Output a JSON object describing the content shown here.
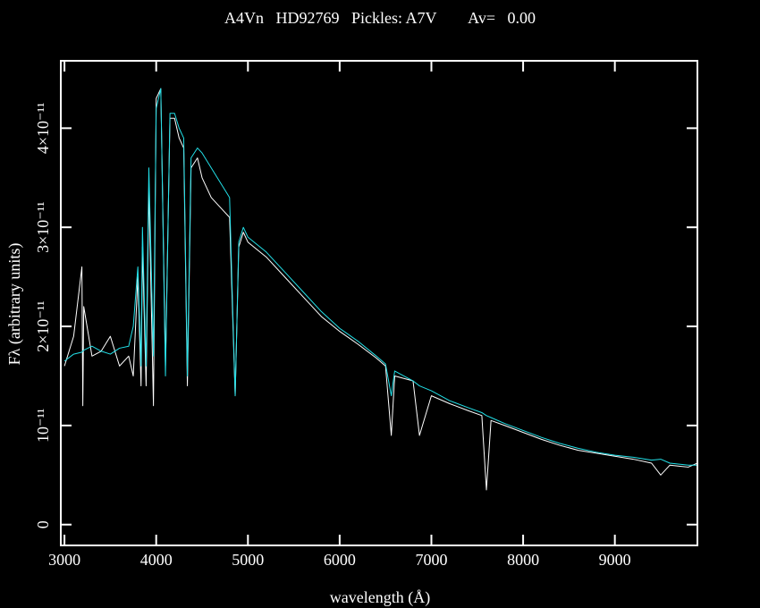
{
  "chart_data": {
    "type": "line",
    "title": "A4Vn   HD92769   Pickles: A7V        Av=   0.00",
    "x_label": "wavelength (Å)",
    "y_label": "Fλ (arbitrary units)",
    "x": [
      3000,
      3100,
      3190,
      3200,
      3210,
      3300,
      3400,
      3500,
      3600,
      3700,
      3750,
      3800,
      3835,
      3850,
      3890,
      3920,
      3970,
      4000,
      4050,
      4101,
      4150,
      4200,
      4250,
      4300,
      4340,
      4380,
      4450,
      4500,
      4600,
      4700,
      4800,
      4861,
      4900,
      4950,
      5000,
      5200,
      5400,
      5600,
      5800,
      6000,
      6200,
      6400,
      6500,
      6563,
      6600,
      6800,
      6870,
      7000,
      7200,
      7400,
      7550,
      7600,
      7650,
      7800,
      8000,
      8200,
      8400,
      8600,
      8800,
      9000,
      9200,
      9400,
      9500,
      9600,
      9800,
      9900
    ],
    "series": [
      {
        "color": "#ffffff",
        "values": [
          1.6e-11,
          1.9e-11,
          2.6e-11,
          1.2e-11,
          2.2e-11,
          1.7e-11,
          1.75e-11,
          1.9e-11,
          1.6e-11,
          1.7e-11,
          1.5e-11,
          2.5e-11,
          1.4e-11,
          2.8e-11,
          1.4e-11,
          3.4e-11,
          1.2e-11,
          4.3e-11,
          4.4e-11,
          1.6e-11,
          4.1e-11,
          4.1e-11,
          3.9e-11,
          3.8e-11,
          1.4e-11,
          3.6e-11,
          3.7e-11,
          3.5e-11,
          3.3e-11,
          3.2e-11,
          3.1e-11,
          1.3e-11,
          2.8e-11,
          2.95e-11,
          2.85e-11,
          2.7e-11,
          2.5e-11,
          2.3e-11,
          2.1e-11,
          1.95e-11,
          1.82e-11,
          1.68e-11,
          1.6e-11,
          9e-12,
          1.5e-11,
          1.45e-11,
          9e-12,
          1.3e-11,
          1.22e-11,
          1.15e-11,
          1.1e-11,
          3.5e-12,
          1.05e-11,
          1e-11,
          9.3e-12,
          8.6e-12,
          8e-12,
          7.5e-12,
          7.2e-12,
          6.9e-12,
          6.6e-12,
          6.2e-12,
          5e-12,
          6e-12,
          5.8e-12,
          6.2e-12
        ]
      },
      {
        "color": "#22e0e8",
        "values": [
          1.65e-11,
          1.72e-11,
          1.74e-11,
          1.75e-11,
          1.76e-11,
          1.8e-11,
          1.75e-11,
          1.72e-11,
          1.78e-11,
          1.8e-11,
          2e-11,
          2.6e-11,
          1.6e-11,
          3e-11,
          1.6e-11,
          3.6e-11,
          1.7e-11,
          4.2e-11,
          4.4e-11,
          1.5e-11,
          4.15e-11,
          4.15e-11,
          4e-11,
          3.9e-11,
          1.5e-11,
          3.7e-11,
          3.8e-11,
          3.75e-11,
          3.6e-11,
          3.45e-11,
          3.3e-11,
          1.3e-11,
          2.85e-11,
          3e-11,
          2.9e-11,
          2.75e-11,
          2.55e-11,
          2.35e-11,
          2.15e-11,
          1.98e-11,
          1.85e-11,
          1.7e-11,
          1.62e-11,
          1.3e-11,
          1.55e-11,
          1.45e-11,
          1.4e-11,
          1.35e-11,
          1.25e-11,
          1.18e-11,
          1.13e-11,
          1.1e-11,
          1.08e-11,
          1.02e-11,
          9.5e-12,
          8.8e-12,
          8.2e-12,
          7.7e-12,
          7.3e-12,
          7e-12,
          6.8e-12,
          6.5e-12,
          6.6e-12,
          6.2e-12,
          6e-12,
          6e-12
        ]
      }
    ],
    "xlim": [
      2960,
      9900
    ],
    "xticks": [
      3000,
      4000,
      5000,
      6000,
      7000,
      8000,
      9000
    ],
    "ylim": [
      -2.1e-12,
      4.68e-11
    ],
    "yticks": [
      0,
      {
        "value": 1e-11,
        "label": "10⁻¹¹"
      },
      {
        "value": 2e-11,
        "label": "2×10⁻¹¹"
      },
      {
        "value": 3e-11,
        "label": "3×10⁻¹¹"
      },
      {
        "value": 4e-11,
        "label": "4×10⁻¹¹"
      }
    ]
  }
}
